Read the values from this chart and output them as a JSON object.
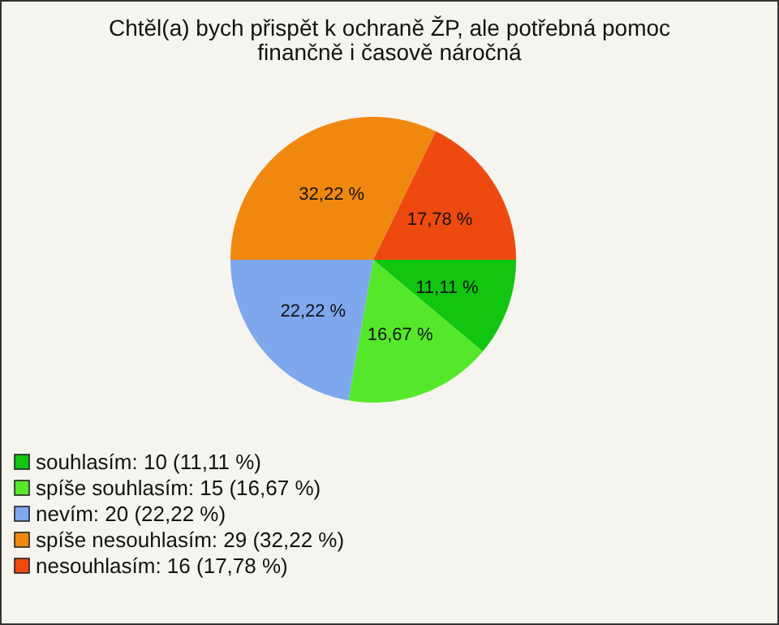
{
  "chart_data": {
    "type": "pie",
    "title": "Chtěl(a) bych přispět k ochraně ŽP, ale potřebná pomoc finančně i časově náročná",
    "categories": [
      "souhlasím: 10 (11,11 %)",
      "spíše souhlasím: 15 (16,67 %)",
      "nevím: 20 (22,22 %)",
      "spíše nesouhlasím: 29 (32,22 %)",
      "nesouhlasím: 16 (17,78 %)"
    ],
    "values": [
      11.11,
      16.67,
      22.22,
      32.22,
      17.78
    ],
    "value_labels": [
      "11,11 %",
      "16,67 %",
      "22,22 %",
      "32,22 %",
      "17,78 %"
    ],
    "colors": [
      "#11c511",
      "#55e82a",
      "#7fa7ee",
      "#f0880f",
      "#ee4a10"
    ],
    "legend": "bottom left"
  }
}
